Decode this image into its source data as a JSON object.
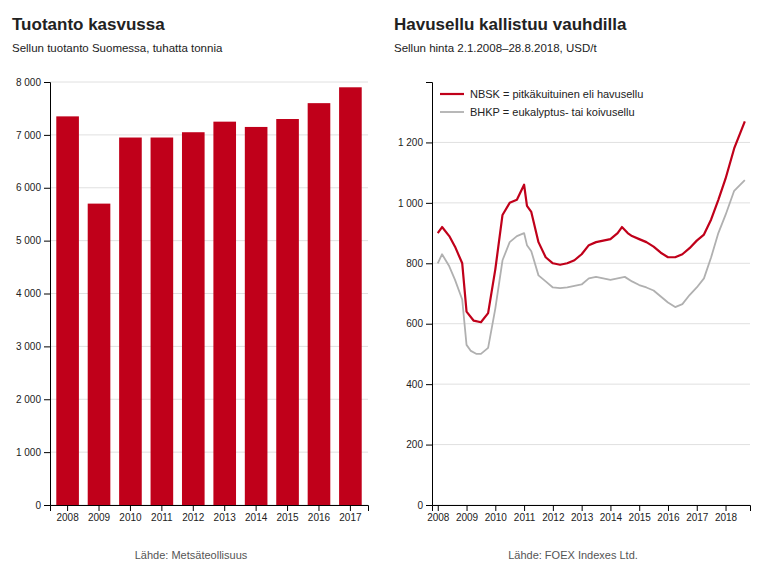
{
  "chart_data": [
    {
      "type": "bar",
      "title": "Tuotanto kasvussa",
      "subtitle": "Sellun tuotanto Suomessa, tuhatta tonnia",
      "source": "Lähde: Metsäteollisuus",
      "categories": [
        "2008",
        "2009",
        "2010",
        "2011",
        "2012",
        "2013",
        "2014",
        "2015",
        "2016",
        "2017"
      ],
      "values": [
        7350,
        5700,
        6950,
        6950,
        7050,
        7250,
        7150,
        7300,
        7600,
        7900
      ],
      "color": "#c0001a",
      "ylim": [
        0,
        8000
      ],
      "yticks": [
        0,
        {
          "value": 1000,
          "label": "1 000"
        },
        {
          "value": 2000,
          "label": "2 000"
        },
        {
          "value": 3000,
          "label": "3 000"
        },
        {
          "value": 4000,
          "label": "4 000"
        },
        {
          "value": 5000,
          "label": "5 000"
        },
        {
          "value": 6000,
          "label": "6 000"
        },
        {
          "value": 7000,
          "label": "7 000"
        },
        {
          "value": 8000,
          "label": "8 000"
        }
      ],
      "grid": true
    },
    {
      "type": "line",
      "title": "Havusellu kallistuu vauhdilla",
      "subtitle": "Sellun hinta 2.1.2008–28.8.2018, USD/t",
      "source": "Lähde: FOEX Indexes Ltd.",
      "xlim": [
        2007.8,
        2018.85
      ],
      "xticks": [
        2008,
        2009,
        2010,
        2011,
        2012,
        2013,
        2014,
        2015,
        2016,
        2017,
        2018
      ],
      "ylim": [
        0,
        1400
      ],
      "yticks": [
        0,
        200,
        400,
        600,
        800,
        {
          "value": 1000,
          "label": "1 000"
        },
        {
          "value": 1200,
          "label": "1 200"
        }
      ],
      "grid": true,
      "legend": "upper left",
      "series": [
        {
          "name": "NBSK = pitkäkuituinen eli havusellu",
          "color": "#c0001a",
          "x": [
            2008.0,
            2008.15,
            2008.4,
            2008.6,
            2008.85,
            2009.0,
            2009.25,
            2009.5,
            2009.75,
            2010.0,
            2010.25,
            2010.5,
            2010.75,
            2011.0,
            2011.1,
            2011.25,
            2011.5,
            2011.75,
            2012.0,
            2012.25,
            2012.5,
            2012.75,
            2013.0,
            2013.25,
            2013.5,
            2013.75,
            2014.0,
            2014.25,
            2014.4,
            2014.6,
            2014.75,
            2015.0,
            2015.25,
            2015.5,
            2015.75,
            2016.0,
            2016.25,
            2016.5,
            2016.75,
            2017.0,
            2017.25,
            2017.5,
            2017.75,
            2018.0,
            2018.3,
            2018.67
          ],
          "values": [
            900,
            920,
            890,
            855,
            800,
            640,
            610,
            605,
            635,
            780,
            960,
            1000,
            1010,
            1060,
            990,
            970,
            870,
            820,
            800,
            795,
            800,
            810,
            830,
            860,
            870,
            875,
            880,
            900,
            920,
            900,
            890,
            880,
            870,
            855,
            835,
            820,
            820,
            830,
            850,
            875,
            895,
            945,
            1010,
            1080,
            1180,
            1270
          ]
        },
        {
          "name": "BHKP = eukalyptus- tai koivusellu",
          "color": "#b0b0b0",
          "x": [
            2008.0,
            2008.15,
            2008.4,
            2008.6,
            2008.85,
            2009.0,
            2009.15,
            2009.35,
            2009.5,
            2009.75,
            2010.0,
            2010.25,
            2010.5,
            2010.75,
            2011.0,
            2011.1,
            2011.25,
            2011.5,
            2011.75,
            2012.0,
            2012.25,
            2012.5,
            2012.75,
            2013.0,
            2013.25,
            2013.5,
            2013.75,
            2014.0,
            2014.25,
            2014.5,
            2014.75,
            2015.0,
            2015.25,
            2015.5,
            2015.75,
            2016.0,
            2016.25,
            2016.5,
            2016.75,
            2017.0,
            2017.25,
            2017.5,
            2017.75,
            2018.0,
            2018.3,
            2018.67
          ],
          "values": [
            800,
            830,
            790,
            745,
            680,
            530,
            510,
            500,
            500,
            520,
            650,
            810,
            870,
            890,
            900,
            860,
            840,
            760,
            740,
            720,
            718,
            720,
            725,
            730,
            750,
            755,
            750,
            745,
            750,
            755,
            740,
            728,
            720,
            710,
            690,
            670,
            655,
            665,
            695,
            720,
            750,
            820,
            900,
            960,
            1040,
            1075
          ]
        }
      ]
    }
  ]
}
